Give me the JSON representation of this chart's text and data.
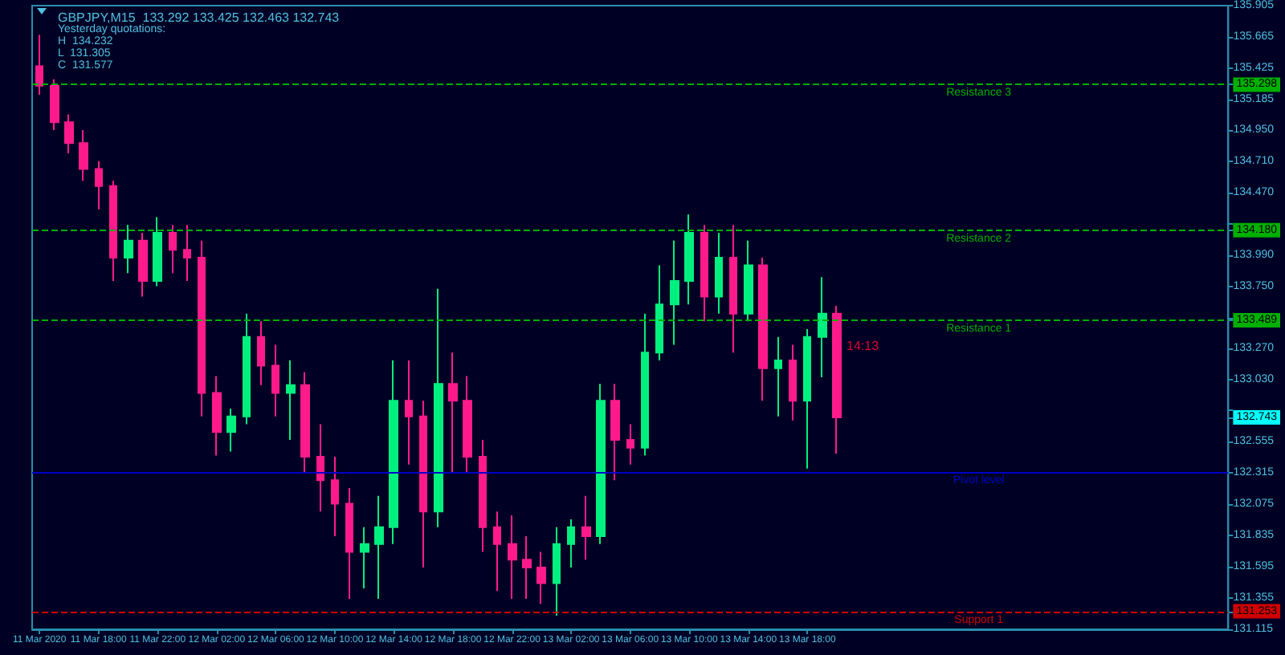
{
  "chart_data": {
    "type": "candlestick",
    "title": "GBPJPY,M15  133.292 133.425 132.463 132.743",
    "x": [
      "2020-03-11T14:00",
      "2020-03-11T15:00",
      "2020-03-11T16:00",
      "2020-03-11T17:00",
      "2020-03-11T18:00",
      "2020-03-11T19:00",
      "2020-03-11T20:00",
      "2020-03-11T21:00",
      "2020-03-11T22:00",
      "2020-03-11T23:00",
      "2020-03-12T00:00",
      "2020-03-12T01:00",
      "2020-03-12T02:00",
      "2020-03-12T03:00",
      "2020-03-12T04:00",
      "2020-03-12T05:00",
      "2020-03-12T06:00",
      "2020-03-12T07:00",
      "2020-03-12T08:00",
      "2020-03-12T09:00",
      "2020-03-12T10:00",
      "2020-03-12T11:00",
      "2020-03-12T12:00",
      "2020-03-12T13:00",
      "2020-03-12T14:00",
      "2020-03-12T15:00",
      "2020-03-12T16:00",
      "2020-03-12T17:00",
      "2020-03-12T18:00",
      "2020-03-12T19:00",
      "2020-03-12T20:00",
      "2020-03-12T21:00",
      "2020-03-12T22:00",
      "2020-03-12T23:00",
      "2020-03-13T00:00",
      "2020-03-13T01:00",
      "2020-03-13T02:00",
      "2020-03-13T03:00",
      "2020-03-13T04:00",
      "2020-03-13T05:00",
      "2020-03-13T06:00",
      "2020-03-13T07:00",
      "2020-03-13T08:00",
      "2020-03-13T09:00",
      "2020-03-13T10:00",
      "2020-03-13T11:00",
      "2020-03-13T12:00",
      "2020-03-13T13:00",
      "2020-03-13T14:00",
      "2020-03-13T15:00",
      "2020-03-13T16:00",
      "2020-03-13T17:00",
      "2020-03-13T18:00",
      "2020-03-13T19:00",
      "2020-03-13T20:00"
    ],
    "ohlc": [
      [
        135.44,
        135.68,
        135.22,
        135.29
      ],
      [
        135.29,
        135.34,
        134.95,
        135.01
      ],
      [
        135.01,
        135.07,
        134.77,
        134.85
      ],
      [
        134.85,
        134.95,
        134.56,
        134.65
      ],
      [
        134.65,
        134.71,
        134.34,
        134.52
      ],
      [
        134.52,
        134.56,
        133.79,
        133.97
      ],
      [
        133.97,
        134.22,
        133.85,
        134.1
      ],
      [
        134.1,
        134.16,
        133.67,
        133.79
      ],
      [
        133.79,
        134.28,
        133.75,
        134.16
      ],
      [
        134.16,
        134.22,
        133.85,
        134.03
      ],
      [
        134.03,
        134.22,
        133.79,
        133.97
      ],
      [
        133.97,
        134.1,
        132.75,
        132.93
      ],
      [
        132.93,
        133.06,
        132.45,
        132.63
      ],
      [
        132.63,
        132.81,
        132.48,
        132.75
      ],
      [
        132.75,
        133.54,
        132.69,
        133.36
      ],
      [
        133.36,
        133.48,
        132.99,
        133.14
      ],
      [
        133.14,
        133.3,
        132.75,
        132.93
      ],
      [
        132.93,
        133.18,
        132.57,
        132.99
      ],
      [
        132.99,
        133.09,
        132.32,
        132.44
      ],
      [
        132.44,
        132.69,
        132.02,
        132.26
      ],
      [
        132.26,
        132.44,
        131.83,
        132.08
      ],
      [
        132.08,
        132.2,
        131.35,
        131.71
      ],
      [
        131.71,
        131.9,
        131.43,
        131.77
      ],
      [
        131.77,
        132.14,
        131.35,
        131.9
      ],
      [
        131.9,
        133.18,
        131.77,
        132.87
      ],
      [
        132.87,
        133.18,
        132.38,
        132.75
      ],
      [
        132.75,
        132.87,
        131.59,
        132.02
      ],
      [
        132.02,
        133.73,
        131.9,
        133.0
      ],
      [
        133.0,
        133.24,
        132.32,
        132.87
      ],
      [
        132.87,
        133.06,
        132.32,
        132.44
      ],
      [
        132.44,
        132.57,
        131.71,
        131.9
      ],
      [
        131.9,
        132.02,
        131.41,
        131.77
      ],
      [
        131.77,
        131.99,
        131.35,
        131.65
      ],
      [
        131.65,
        131.83,
        131.35,
        131.59
      ],
      [
        131.59,
        131.71,
        131.31,
        131.47
      ],
      [
        131.47,
        131.9,
        131.22,
        131.77
      ],
      [
        131.77,
        131.96,
        131.59,
        131.9
      ],
      [
        131.9,
        132.14,
        131.65,
        131.83
      ],
      [
        131.83,
        133.0,
        131.77,
        132.87
      ],
      [
        132.87,
        133.0,
        132.26,
        132.57
      ],
      [
        132.57,
        132.69,
        132.38,
        132.51
      ],
      [
        132.51,
        133.54,
        132.45,
        133.24
      ],
      [
        133.24,
        133.91,
        133.18,
        133.61
      ],
      [
        133.61,
        134.1,
        133.3,
        133.79
      ],
      [
        133.79,
        134.3,
        133.61,
        134.16
      ],
      [
        134.16,
        134.22,
        133.48,
        133.67
      ],
      [
        133.67,
        134.16,
        133.54,
        133.97
      ],
      [
        133.97,
        134.22,
        133.24,
        133.54
      ],
      [
        133.54,
        134.1,
        133.48,
        133.91
      ],
      [
        133.91,
        133.97,
        132.87,
        133.12
      ],
      [
        133.12,
        133.36,
        132.75,
        133.18
      ],
      [
        133.18,
        133.3,
        132.72,
        132.87
      ],
      [
        132.87,
        133.42,
        132.35,
        133.36
      ],
      [
        133.36,
        133.82,
        133.05,
        133.54
      ],
      [
        133.54,
        133.6,
        132.463,
        132.743
      ]
    ],
    "colors": [
      "#ff1a8c",
      "#ff1a8c",
      "#ff1a8c",
      "#ff1a8c",
      "#ff1a8c",
      "#ff1a8c",
      "#00f07f",
      "#ff1a8c",
      "#00f07f",
      "#ff1a8c",
      "#ff1a8c",
      "#ff1a8c",
      "#ff1a8c",
      "#00f07f",
      "#00f07f",
      "#ff1a8c",
      "#ff1a8c",
      "#00f07f",
      "#ff1a8c",
      "#ff1a8c",
      "#ff1a8c",
      "#ff1a8c",
      "#00f07f",
      "#00f07f",
      "#00f07f",
      "#ff1a8c",
      "#ff1a8c",
      "#00f07f",
      "#ff1a8c",
      "#ff1a8c",
      "#ff1a8c",
      "#ff1a8c",
      "#ff1a8c",
      "#ff1a8c",
      "#ff1a8c",
      "#00f07f",
      "#00f07f",
      "#ff1a8c",
      "#00f07f",
      "#ff1a8c",
      "#ff1a8c",
      "#00f07f",
      "#00f07f",
      "#00f07f",
      "#00f07f",
      "#ff1a8c",
      "#00f07f",
      "#ff1a8c",
      "#00f07f",
      "#ff1a8c",
      "#00f07f",
      "#ff1a8c",
      "#00f07f",
      "#00f07f",
      "#ff1a8c"
    ],
    "xlim": [
      "2020-03-11T13:30",
      "2020-03-14T22:30"
    ],
    "xticks": [
      {
        "value": "2020-03-11T14:00",
        "label": "11 Mar 2020"
      },
      {
        "value": "2020-03-11T18:00",
        "label": "11 Mar 18:00"
      },
      {
        "value": "2020-03-11T22:00",
        "label": "11 Mar 22:00"
      },
      {
        "value": "2020-03-12T02:00",
        "label": "12 Mar 02:00"
      },
      {
        "value": "2020-03-12T06:00",
        "label": "12 Mar 06:00"
      },
      {
        "value": "2020-03-12T10:00",
        "label": "12 Mar 10:00"
      },
      {
        "value": "2020-03-12T14:00",
        "label": "12 Mar 14:00"
      },
      {
        "value": "2020-03-12T18:00",
        "label": "12 Mar 18:00"
      },
      {
        "value": "2020-03-12T22:00",
        "label": "12 Mar 22:00"
      },
      {
        "value": "2020-03-13T02:00",
        "label": "13 Mar 02:00"
      },
      {
        "value": "2020-03-13T06:00",
        "label": "13 Mar 06:00"
      },
      {
        "value": "2020-03-13T10:00",
        "label": "13 Mar 10:00"
      },
      {
        "value": "2020-03-13T14:00",
        "label": "13 Mar 14:00"
      },
      {
        "value": "2020-03-13T18:00",
        "label": "13 Mar 18:00"
      }
    ],
    "ylim": [
      131.115,
      135.905
    ],
    "yticks": [
      135.905,
      135.665,
      135.425,
      135.298,
      135.185,
      {
        "value": 134.95,
        "label": "134.950"
      },
      {
        "value": 134.71,
        "label": "134.710"
      },
      {
        "value": 134.47,
        "label": "134.470"
      },
      {
        "value": 134.23,
        "label": null
      },
      {
        "value": 134.18,
        "label": "134.180"
      },
      {
        "value": 133.99,
        "label": "133.990"
      },
      {
        "value": 133.75,
        "label": "133.750"
      },
      {
        "value": 133.51,
        "label": null
      },
      133.489,
      {
        "value": 133.27,
        "label": "133.270"
      },
      {
        "value": 133.03,
        "label": "133.030"
      },
      {
        "value": 132.795,
        "label": null
      },
      132.743,
      132.555,
      132.315,
      132.075,
      131.835,
      131.595,
      131.355,
      131.253,
      131.115
    ],
    "ref_lines": [
      {
        "axis": "y",
        "value": 135.298,
        "label": "Resistance 3",
        "color": "#00b000",
        "line_style": "dashed"
      },
      {
        "axis": "y",
        "value": 134.18,
        "label": "Resistance 2",
        "color": "#00b000",
        "line_style": "dashed"
      },
      {
        "axis": "y",
        "value": 133.489,
        "label": "Resistance 1",
        "color": "#00b000",
        "line_style": "dashed"
      },
      {
        "axis": "y",
        "value": 132.323,
        "label": "Pivot level",
        "color": "#0000c8",
        "line_style": "solid"
      },
      {
        "axis": "y",
        "value": 131.253,
        "label": "Support 1",
        "color": "#d00000",
        "line_style": "dashed"
      }
    ],
    "annotations": [
      "Yesterday quotations:",
      "H  134.232",
      "L  131.305",
      "C  131.577",
      "14:13"
    ]
  }
}
